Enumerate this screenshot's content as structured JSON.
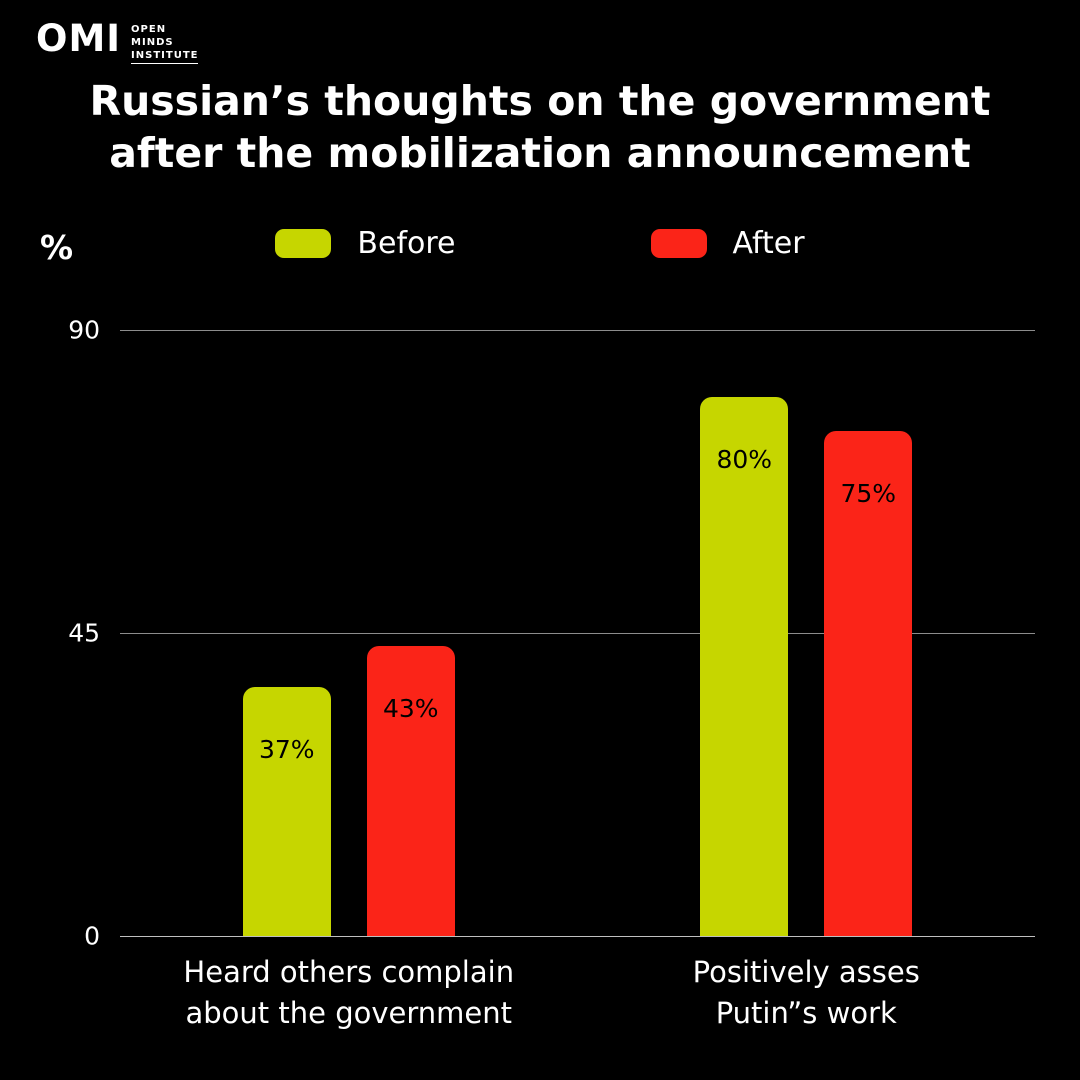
{
  "logo": {
    "mark": "OMI",
    "text_lines": [
      "OPEN",
      "MINDS",
      "INSTITUTE"
    ]
  },
  "title": {
    "line1": "Russian’s thoughts on the government",
    "line2": "after the mobilization announcement"
  },
  "y_axis": {
    "unit": "%"
  },
  "chart_data": {
    "type": "bar",
    "title": "Russian’s thoughts on the government after the mobilization announcement",
    "categories": [
      [
        "Heard others complain",
        "about the government"
      ],
      [
        "Positively asses",
        "Putin”s work"
      ]
    ],
    "series": [
      {
        "name": "Before",
        "color": "#c6d600",
        "values": [
          37,
          80
        ]
      },
      {
        "name": "After",
        "color": "#fb2418",
        "values": [
          43,
          75
        ]
      }
    ],
    "value_suffix": "%",
    "xlabel": "",
    "ylabel": "%",
    "ylim": [
      0,
      90
    ],
    "yticks": [
      0,
      45,
      90
    ],
    "grid": true,
    "legend_position": "top"
  },
  "colors": {
    "background": "#000000",
    "grid": "#8c8c8c",
    "text": "#ffffff",
    "bar_value_label": "#000000"
  }
}
